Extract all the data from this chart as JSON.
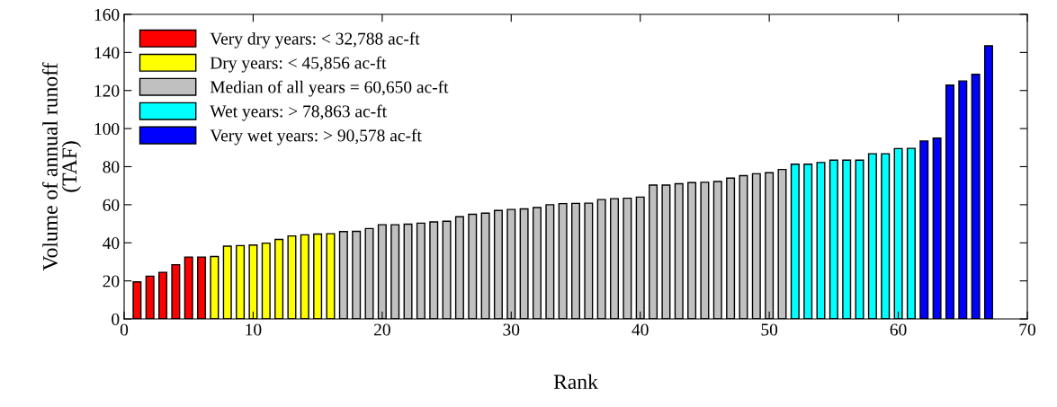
{
  "chart_data": {
    "type": "bar",
    "xlabel": "Rank",
    "ylabel": "Volume of annual runoff\n(TAF)",
    "xlim": [
      0,
      70
    ],
    "xticks": [
      0,
      10,
      20,
      30,
      40,
      50,
      60,
      70
    ],
    "ylim": [
      0,
      160
    ],
    "yticks": [
      0,
      20,
      40,
      60,
      80,
      100,
      120,
      140,
      160
    ],
    "grid": false,
    "legend": "top left",
    "series": [
      {
        "name": "Very dry years: < 32,788 ac-ft",
        "color": "#ff0000",
        "x": [
          1,
          2,
          3,
          4,
          5,
          6
        ],
        "values": [
          19.5,
          22.5,
          24.5,
          28.5,
          32.5,
          32.5
        ]
      },
      {
        "name": "Dry years: < 45,856 ac-ft",
        "color": "#ffff00",
        "x": [
          7,
          8,
          9,
          10,
          11,
          12,
          13,
          14,
          15,
          16
        ],
        "values": [
          32.8,
          38.2,
          38.5,
          38.8,
          39.8,
          41.8,
          43.6,
          44.2,
          44.6,
          44.8
        ]
      },
      {
        "name": "Median of all years = 60,650 ac-ft",
        "color": "#c0c0c0",
        "x": [
          17,
          18,
          19,
          20,
          21,
          22,
          23,
          24,
          25,
          26,
          27,
          28,
          29,
          30,
          31,
          32,
          33,
          34,
          35,
          36,
          37,
          38,
          39,
          40,
          41,
          42,
          43,
          44,
          45,
          46,
          47,
          48,
          49,
          50,
          51
        ],
        "values": [
          45.9,
          46,
          47.5,
          49.5,
          49.5,
          49.8,
          50.3,
          51,
          51.3,
          53.7,
          55,
          55.6,
          57,
          57.5,
          57.8,
          58.5,
          60,
          60.6,
          60.7,
          60.8,
          62.7,
          63.2,
          63.4,
          64,
          70.3,
          70.3,
          71,
          71.6,
          71.8,
          72.2,
          74,
          75.3,
          76.3,
          76.8,
          78.5
        ]
      },
      {
        "name": "Wet years: > 78,863 ac-ft",
        "color": "#00ffff",
        "x": [
          52,
          53,
          54,
          55,
          56,
          57,
          58,
          59,
          60,
          61
        ],
        "values": [
          81.3,
          81.3,
          82.2,
          83.4,
          83.4,
          83.4,
          86.8,
          86.8,
          89.5,
          89.6
        ]
      },
      {
        "name": "Very wet years: > 90,578 ac-ft",
        "color": "#0000ff",
        "x": [
          62,
          63,
          64,
          65,
          66,
          67
        ],
        "values": [
          93.5,
          95,
          122.8,
          125,
          128.5,
          143.5
        ]
      }
    ]
  }
}
